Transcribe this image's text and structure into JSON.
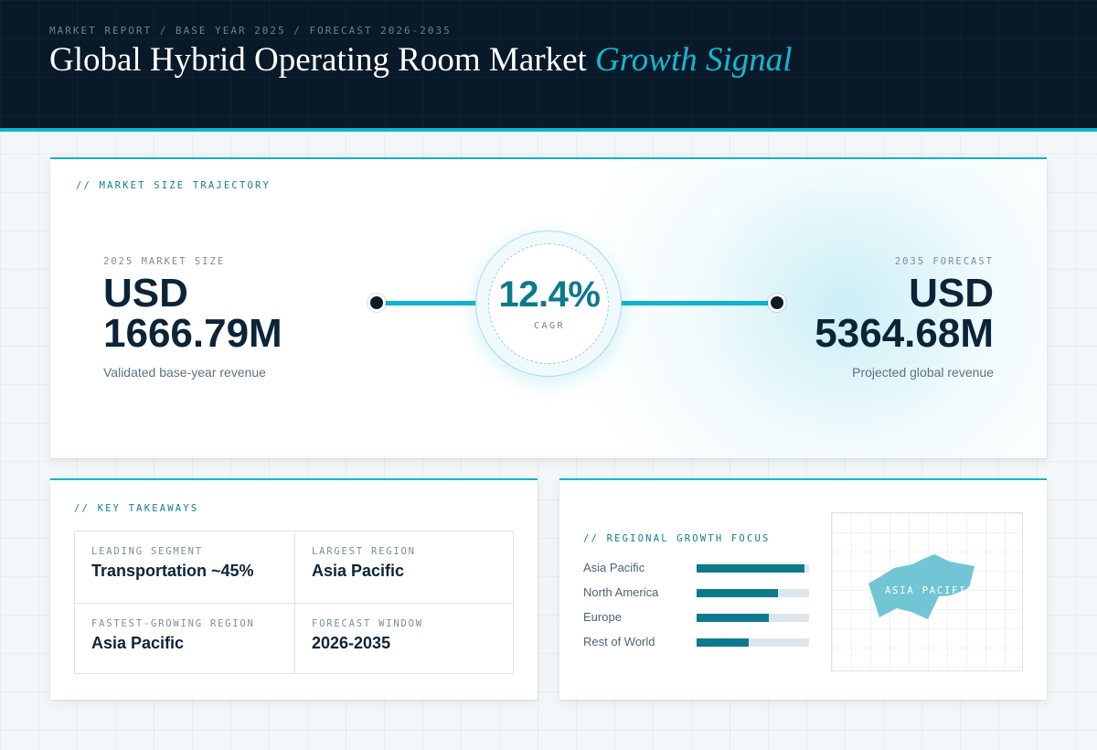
{
  "header": {
    "breadcrumb": "MARKET REPORT / BASE YEAR 2025 / FORECAST 2026-2035",
    "title_main": "Global Hybrid Operating Room Market",
    "title_accent": "Growth Signal"
  },
  "trajectory": {
    "section_label": "// MARKET SIZE TRAJECTORY",
    "base": {
      "label": "2025 MARKET SIZE",
      "currency": "USD",
      "amount": "1666.79M",
      "caption": "Validated base-year revenue"
    },
    "cagr": {
      "value": "12.4%",
      "label": "CAGR"
    },
    "forecast": {
      "label": "2035 FORECAST",
      "currency": "USD",
      "amount": "5364.68M",
      "caption": "Projected global revenue"
    }
  },
  "takeaways": {
    "section_label": "// KEY TAKEAWAYS",
    "items": [
      {
        "label": "LEADING SEGMENT",
        "value": "Transportation ~45%"
      },
      {
        "label": "LARGEST REGION",
        "value": "Asia Pacific"
      },
      {
        "label": "FASTEST-GROWING REGION",
        "value": "Asia Pacific"
      },
      {
        "label": "FORECAST WINDOW",
        "value": "2026-2035"
      }
    ]
  },
  "regional": {
    "section_label": "// REGIONAL GROWTH FOCUS",
    "bars": [
      {
        "name": "Asia Pacific",
        "level": 0.96
      },
      {
        "name": "North America",
        "level": 0.72
      },
      {
        "name": "Europe",
        "level": 0.64
      },
      {
        "name": "Rest of World",
        "level": 0.46
      }
    ],
    "map_label": "ASIA PACIFIC"
  },
  "colors": {
    "accent": "#0fb3cf",
    "accent_dark": "#0c7a8c",
    "header_bg": "#081a29",
    "ink": "#0c2438"
  }
}
